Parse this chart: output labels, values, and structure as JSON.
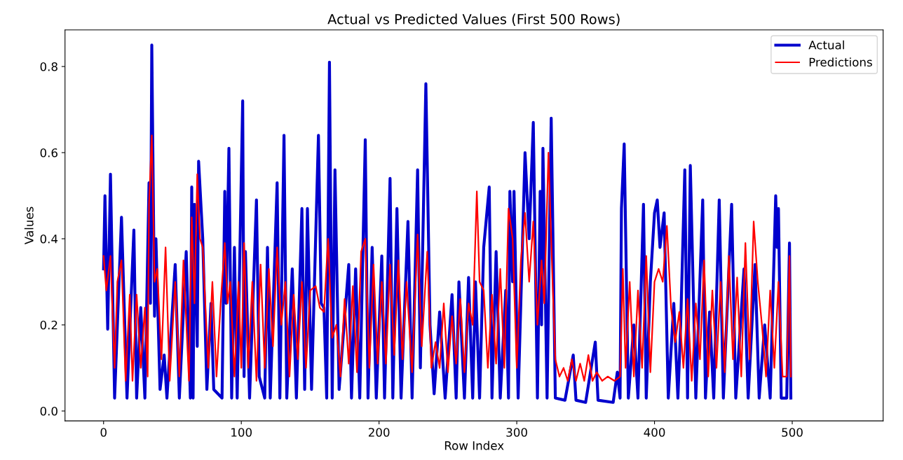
{
  "chart_data": {
    "type": "line",
    "title": "Actual vs Predicted Values (First 500 Rows)",
    "xlabel": "Row Index",
    "ylabel": "Values",
    "xlim": [
      -28,
      566
    ],
    "ylim": [
      -0.023,
      0.885
    ],
    "xticks": [
      0,
      100,
      200,
      300,
      400,
      500
    ],
    "yticks": [
      {
        "value": 0,
        "label": "0.0"
      },
      {
        "value": 0.2,
        "label": "0.2"
      },
      {
        "value": 0.4,
        "label": "0.4"
      },
      {
        "value": 0.6,
        "label": "0.6"
      },
      {
        "value": 0.8,
        "label": "0.8"
      }
    ],
    "grid": false,
    "legend": "top right",
    "marker": "none",
    "line_style": "solid",
    "series": [
      {
        "name": "Actual",
        "color": "#0000cd",
        "x": [
          0,
          1,
          3,
          5,
          8,
          13,
          17,
          22,
          24,
          27,
          30,
          33,
          34,
          35,
          37,
          38,
          41,
          44,
          46,
          52,
          55,
          60,
          63,
          64,
          65,
          66,
          68,
          69,
          72,
          75,
          78,
          80,
          86,
          88,
          89,
          91,
          93,
          95,
          97,
          101,
          102,
          103,
          106,
          111,
          113,
          117,
          119,
          121,
          126,
          128,
          131,
          133,
          137,
          140,
          144,
          146,
          148,
          151,
          156,
          158,
          160,
          162,
          164,
          166,
          168,
          171,
          178,
          180,
          183,
          186,
          190,
          192,
          195,
          198,
          202,
          204,
          208,
          210,
          213,
          216,
          221,
          224,
          228,
          230,
          234,
          237,
          240,
          244,
          248,
          253,
          256,
          258,
          262,
          265,
          268,
          270,
          273,
          276,
          280,
          282,
          285,
          288,
          292,
          294,
          295,
          297,
          298,
          301,
          306,
          309,
          312,
          315,
          317,
          318,
          319,
          322,
          325,
          328,
          335,
          341,
          343,
          350,
          357,
          359,
          370,
          373,
          375,
          376,
          378,
          381,
          385,
          388,
          392,
          394,
          397,
          400,
          402,
          404,
          407,
          410,
          414,
          417,
          419,
          422,
          424,
          426,
          430,
          435,
          437,
          440,
          443,
          447,
          450,
          456,
          459,
          465,
          468,
          473,
          476,
          480,
          484,
          488,
          489,
          490,
          492,
          496,
          498,
          499
        ],
        "values": [
          0.33,
          0.5,
          0.19,
          0.55,
          0.03,
          0.45,
          0.03,
          0.42,
          0.03,
          0.24,
          0.03,
          0.53,
          0.25,
          0.85,
          0.22,
          0.4,
          0.05,
          0.13,
          0.03,
          0.34,
          0.03,
          0.37,
          0.03,
          0.52,
          0.03,
          0.48,
          0.15,
          0.58,
          0.4,
          0.05,
          0.25,
          0.05,
          0.03,
          0.51,
          0.25,
          0.61,
          0.03,
          0.38,
          0.03,
          0.72,
          0.08,
          0.37,
          0.03,
          0.49,
          0.08,
          0.03,
          0.38,
          0.03,
          0.53,
          0.03,
          0.64,
          0.03,
          0.33,
          0.03,
          0.47,
          0.05,
          0.47,
          0.05,
          0.64,
          0.25,
          0.24,
          0.03,
          0.81,
          0.03,
          0.56,
          0.05,
          0.34,
          0.03,
          0.33,
          0.03,
          0.63,
          0.03,
          0.38,
          0.03,
          0.36,
          0.03,
          0.54,
          0.03,
          0.47,
          0.03,
          0.44,
          0.03,
          0.56,
          0.1,
          0.76,
          0.2,
          0.04,
          0.23,
          0.03,
          0.27,
          0.03,
          0.3,
          0.03,
          0.31,
          0.03,
          0.3,
          0.03,
          0.38,
          0.52,
          0.03,
          0.37,
          0.03,
          0.28,
          0.03,
          0.51,
          0.3,
          0.51,
          0.03,
          0.6,
          0.4,
          0.67,
          0.03,
          0.51,
          0.2,
          0.61,
          0.03,
          0.68,
          0.03,
          0.025,
          0.13,
          0.025,
          0.02,
          0.16,
          0.025,
          0.02,
          0.09,
          0.03,
          0.47,
          0.62,
          0.03,
          0.2,
          0.03,
          0.48,
          0.03,
          0.3,
          0.46,
          0.49,
          0.38,
          0.46,
          0.03,
          0.25,
          0.03,
          0.2,
          0.56,
          0.03,
          0.57,
          0.03,
          0.49,
          0.03,
          0.23,
          0.03,
          0.49,
          0.03,
          0.48,
          0.03,
          0.33,
          0.03,
          0.34,
          0.03,
          0.2,
          0.03,
          0.5,
          0.38,
          0.47,
          0.03,
          0.03,
          0.39,
          0.03
        ]
      },
      {
        "name": "Predictions",
        "color": "#ff0000",
        "x": [
          0,
          2,
          5,
          8,
          10,
          13,
          16,
          19,
          21,
          24,
          27,
          30,
          32,
          33,
          35,
          37,
          39,
          42,
          45,
          48,
          52,
          55,
          58,
          62,
          64,
          66,
          68,
          70,
          72,
          76,
          79,
          82,
          85,
          88,
          90,
          92,
          95,
          98,
          100,
          102,
          105,
          108,
          111,
          114,
          117,
          120,
          123,
          126,
          129,
          132,
          135,
          138,
          141,
          144,
          147,
          150,
          154,
          157,
          160,
          163,
          166,
          169,
          172,
          175,
          178,
          181,
          184,
          187,
          190,
          193,
          196,
          199,
          202,
          205,
          208,
          211,
          214,
          217,
          220,
          224,
          228,
          231,
          235,
          238,
          241,
          244,
          247,
          250,
          253,
          256,
          259,
          262,
          265,
          268,
          271,
          273,
          276,
          279,
          282,
          285,
          288,
          291,
          294,
          297,
          300,
          303,
          306,
          309,
          312,
          315,
          318,
          320,
          323,
          326,
          328,
          331,
          334,
          337,
          340,
          343,
          346,
          349,
          352,
          355,
          358,
          362,
          366,
          371,
          375,
          377,
          379,
          382,
          385,
          388,
          391,
          394,
          397,
          400,
          403,
          406,
          409,
          412,
          415,
          418,
          421,
          424,
          427,
          430,
          433,
          436,
          439,
          442,
          445,
          448,
          451,
          454,
          457,
          460,
          463,
          466,
          469,
          472,
          475,
          478,
          481,
          484,
          487,
          490,
          493,
          496,
          498,
          499
        ],
        "values": [
          0.36,
          0.28,
          0.36,
          0.1,
          0.3,
          0.35,
          0.07,
          0.27,
          0.07,
          0.27,
          0.1,
          0.24,
          0.08,
          0.48,
          0.64,
          0.3,
          0.33,
          0.12,
          0.38,
          0.07,
          0.3,
          0.08,
          0.35,
          0.07,
          0.45,
          0.25,
          0.55,
          0.4,
          0.38,
          0.1,
          0.3,
          0.08,
          0.25,
          0.39,
          0.25,
          0.3,
          0.08,
          0.3,
          0.1,
          0.39,
          0.1,
          0.3,
          0.07,
          0.34,
          0.1,
          0.33,
          0.15,
          0.38,
          0.2,
          0.3,
          0.08,
          0.27,
          0.12,
          0.3,
          0.1,
          0.28,
          0.29,
          0.24,
          0.23,
          0.4,
          0.17,
          0.2,
          0.08,
          0.26,
          0.11,
          0.29,
          0.09,
          0.37,
          0.4,
          0.1,
          0.34,
          0.11,
          0.3,
          0.11,
          0.34,
          0.13,
          0.35,
          0.12,
          0.3,
          0.09,
          0.41,
          0.15,
          0.37,
          0.1,
          0.16,
          0.1,
          0.25,
          0.09,
          0.22,
          0.11,
          0.26,
          0.09,
          0.25,
          0.2,
          0.51,
          0.3,
          0.28,
          0.1,
          0.27,
          0.11,
          0.33,
          0.1,
          0.47,
          0.4,
          0.1,
          0.35,
          0.46,
          0.3,
          0.44,
          0.2,
          0.35,
          0.25,
          0.6,
          0.3,
          0.12,
          0.08,
          0.1,
          0.07,
          0.12,
          0.07,
          0.11,
          0.07,
          0.13,
          0.07,
          0.09,
          0.07,
          0.08,
          0.07,
          0.08,
          0.33,
          0.1,
          0.3,
          0.08,
          0.28,
          0.1,
          0.36,
          0.09,
          0.3,
          0.33,
          0.3,
          0.43,
          0.24,
          0.16,
          0.23,
          0.1,
          0.26,
          0.07,
          0.25,
          0.12,
          0.35,
          0.08,
          0.28,
          0.1,
          0.3,
          0.09,
          0.36,
          0.12,
          0.31,
          0.08,
          0.39,
          0.12,
          0.44,
          0.3,
          0.2,
          0.08,
          0.28,
          0.1,
          0.3,
          0.08,
          0.08,
          0.36,
          0.08
        ]
      }
    ]
  }
}
